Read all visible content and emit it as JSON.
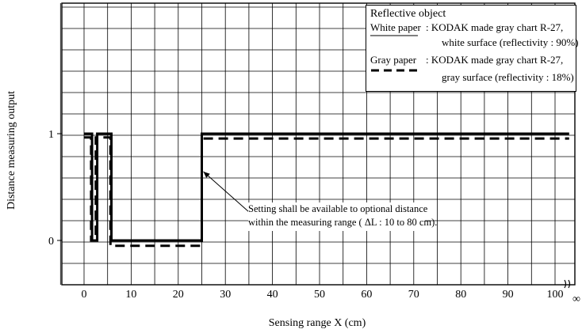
{
  "chart_data": {
    "type": "line",
    "xlabel": "Sensing range X (cm)",
    "ylabel": "Distance measuring output",
    "x_ticks": [
      0,
      10,
      20,
      30,
      40,
      50,
      60,
      70,
      80,
      90,
      100
    ],
    "x_infinity_label": "∞",
    "y_ticks": [
      0,
      1
    ],
    "xlim": [
      -2,
      105
    ],
    "ylim": [
      -0.4,
      1.25
    ],
    "grid": true,
    "legend_placement": "top-right",
    "series": [
      {
        "name": "White paper",
        "style": "solid",
        "points": [
          [
            0,
            1
          ],
          [
            1.7,
            1
          ],
          [
            1.7,
            0
          ],
          [
            2.8,
            0
          ],
          [
            2.8,
            1
          ],
          [
            5.8,
            1
          ],
          [
            5.8,
            0
          ],
          [
            25,
            0
          ],
          [
            25,
            1
          ],
          [
            100,
            1
          ],
          [
            103,
            1
          ]
        ]
      },
      {
        "name": "Gray paper",
        "style": "dashed",
        "points": [
          [
            0,
            0.965
          ],
          [
            1.5,
            0.965
          ],
          [
            1.5,
            0.0
          ],
          [
            2.5,
            0.0
          ],
          [
            2.5,
            0.965
          ],
          [
            5.6,
            0.965
          ],
          [
            5.6,
            -0.05
          ],
          [
            25,
            -0.05
          ],
          [
            25,
            0.955
          ],
          [
            100,
            0.955
          ],
          [
            103,
            0.955
          ]
        ]
      }
    ]
  },
  "legend": {
    "title": "Reflective object",
    "white_label": "White paper",
    "white_desc_1": ": KODAK made gray chart R-27,",
    "white_desc_2": "white surface (reflectivity : 90%)",
    "gray_label": "Gray paper",
    "gray_desc_1": ": KODAK made gray chart R-27,",
    "gray_desc_2": "gray surface (reflectivity : 18%)"
  },
  "annotation": {
    "line1": "Setting shall be available to optional distance",
    "line2": "within the measuring range ( ΔL : 10 to 80 cm).",
    "arrow_target": [
      25,
      0.6
    ]
  }
}
